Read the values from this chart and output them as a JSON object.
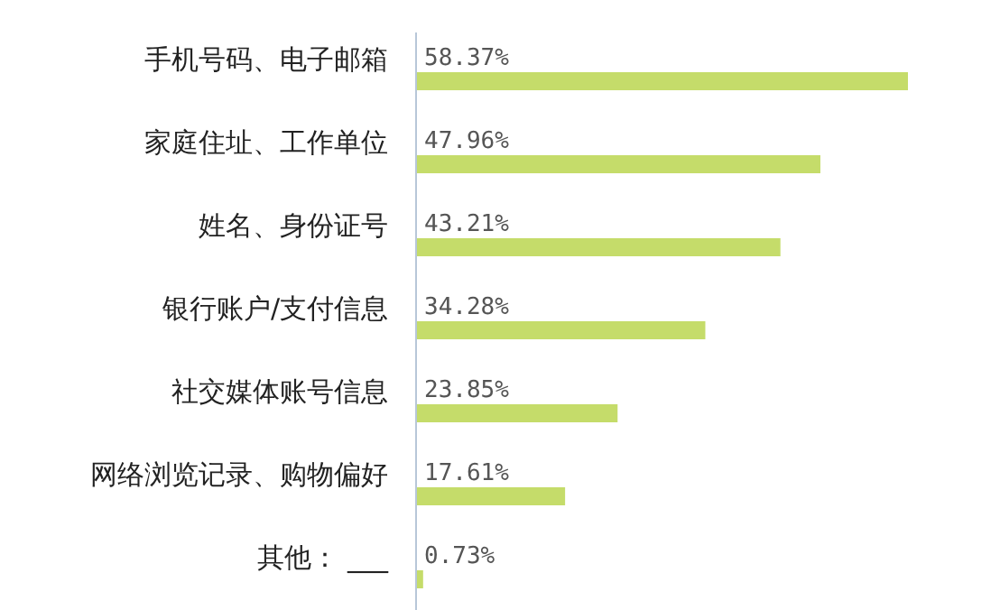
{
  "chart_data": {
    "type": "bar",
    "orientation": "horizontal",
    "categories": [
      "手机号码、电子邮箱",
      "家庭住址、工作单位",
      "姓名、身份证号",
      "银行账户/支付信息",
      "社交媒体账号信息",
      "网络浏览记录、购物偏好",
      "其他： ___"
    ],
    "values": [
      58.37,
      47.96,
      43.21,
      34.28,
      23.85,
      17.61,
      0.73
    ],
    "value_labels": [
      "58.37%",
      "47.96%",
      "43.21%",
      "34.28%",
      "23.85%",
      "17.61%",
      "0.73%"
    ],
    "color": "#c5dc6a"
  }
}
